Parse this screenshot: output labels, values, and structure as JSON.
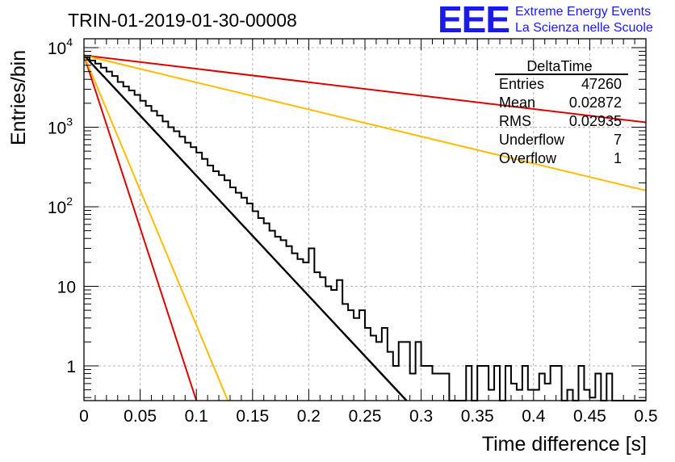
{
  "header": {
    "run_title": "TRIN-01-2019-01-30-00008",
    "logo_text": "EEE",
    "project_line1": "Extreme Energy Events",
    "project_line2": "La Scienza nelle Scuole",
    "logo_color": "#1a1aee"
  },
  "stats_box": {
    "title": "DeltaTime",
    "rows": [
      {
        "label": "Entries",
        "value": "47260"
      },
      {
        "label": "Mean",
        "value": "0.02872"
      },
      {
        "label": "RMS",
        "value": "0.02935"
      },
      {
        "label": "Underflow",
        "value": "7"
      },
      {
        "label": "Overflow",
        "value": "1"
      }
    ]
  },
  "chart_data": {
    "type": "line",
    "title": "TRIN-01-2019-01-30-00008",
    "xlabel": "Time difference [s]",
    "ylabel": "Entries/bin",
    "xlim": [
      0,
      0.5
    ],
    "ylim": [
      0.35,
      14000
    ],
    "y_scale": "log",
    "grid": true,
    "x_tick_labels": [
      "0",
      "0.05",
      "0.1",
      "0.15",
      "0.2",
      "0.25",
      "0.3",
      "0.35",
      "0.4",
      "0.45",
      "0.5"
    ],
    "y_tick_labels": [
      {
        "base": "10",
        "exp": "4"
      },
      {
        "base": "10",
        "exp": "3"
      },
      {
        "base": "10",
        "exp": "2"
      },
      {
        "base": "10",
        "exp": ""
      },
      {
        "base": "1",
        "exp": ""
      }
    ],
    "histogram": {
      "name": "DeltaTime",
      "color": "#000000",
      "bin_width": 0.005,
      "x_start": 0,
      "values": [
        7600,
        6900,
        6300,
        5600,
        5000,
        4400,
        3700,
        3250,
        2900,
        2550,
        2150,
        1850,
        1600,
        1400,
        1180,
        1000,
        890,
        760,
        640,
        560,
        480,
        400,
        330,
        280,
        250,
        215,
        175,
        150,
        130,
        110,
        88,
        72,
        62,
        50,
        42,
        38,
        32,
        26,
        22,
        20,
        30,
        15,
        13,
        10,
        9,
        12,
        6,
        5,
        4,
        5,
        3,
        2.4,
        2,
        3,
        1.5,
        1,
        2,
        2,
        0.8,
        2,
        1,
        1,
        0.8,
        0.8,
        0.8,
        0,
        0,
        0,
        1,
        0,
        1,
        1,
        0.5,
        1,
        0,
        1,
        0.6,
        0.5,
        1,
        0.5,
        0.5,
        0.8,
        0.6,
        1,
        1,
        0,
        0.5,
        0,
        1,
        0.5,
        0.4,
        0.8,
        0,
        0.8,
        0,
        0,
        0,
        0,
        0,
        0
      ]
    },
    "series": [
      {
        "color": "#000000",
        "x": [
          0,
          0.287
        ],
        "y": [
          8000,
          0.35
        ]
      },
      {
        "color": "#dd0000",
        "x": [
          0,
          0.5
        ],
        "y": [
          8000,
          1150
        ]
      },
      {
        "color": "#ffbb00",
        "x": [
          0,
          0.5
        ],
        "y": [
          8000,
          160
        ]
      },
      {
        "color": "#dd0000",
        "x": [
          0,
          0.1
        ],
        "y": [
          8000,
          0.35
        ]
      },
      {
        "color": "#ffbb00",
        "x": [
          0,
          0.128
        ],
        "y": [
          8000,
          0.35
        ]
      }
    ]
  }
}
